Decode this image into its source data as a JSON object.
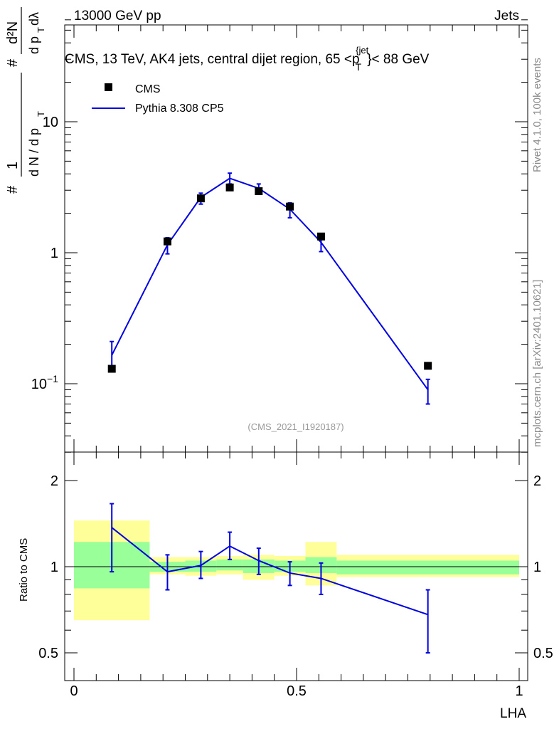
{
  "header": {
    "left": "13000 GeV pp",
    "right": "Jets"
  },
  "plot_title": "CMS, 13 TeV, AK4 jets, central dijet region, 65 <p",
  "plot_title_sup": "{jet",
  "plot_title_sub": "T",
  "plot_title_end": "}< 88 GeV",
  "side_labels": {
    "rivet": "Rivet 4.1.0,  100k events",
    "mcplots": "mcplots.cern.ch [arXiv:2401.10621]"
  },
  "analysis_ref": "(CMS_2021_I1920187)",
  "y_label_main": {
    "top_num": "d²N",
    "top_den": "d p",
    "top_den_sub": "T",
    "top_den_tail": " dλ",
    "bottom": "d N / d p",
    "bottom_sub": "T",
    "hash": "#",
    "one": "1"
  },
  "y_label_ratio": "Ratio to CMS",
  "x_label": "LHA",
  "legend": [
    {
      "name": "CMS",
      "marker": "square"
    },
    {
      "name": "Pythia 8.308 CP5",
      "marker": "line"
    }
  ],
  "colors": {
    "data": "#000000",
    "mc": "#0000e0",
    "band_outer": "#ffff99",
    "band_inner": "#99ff99"
  },
  "chart_data": [
    {
      "type": "scatter",
      "panel": "main",
      "title": "CMS, 13 TeV, AK4 jets, central dijet region, 65 < pT{jet} < 88 GeV",
      "xlabel": "LHA",
      "ylabel": "1/dN/dpT · d²N/dpT dλ",
      "yscale": "log",
      "xlim": [
        0,
        1
      ],
      "ylim": [
        0.03,
        60
      ],
      "y_ticks": [
        {
          "value": 0.1,
          "label": "10⁻¹"
        },
        {
          "value": 1,
          "label": "1"
        },
        {
          "value": 10,
          "label": "10"
        }
      ],
      "x_bins": [
        [
          0.0,
          0.17
        ],
        [
          0.17,
          0.25
        ],
        [
          0.25,
          0.32
        ],
        [
          0.32,
          0.38
        ],
        [
          0.38,
          0.45
        ],
        [
          0.45,
          0.52
        ],
        [
          0.52,
          0.59
        ],
        [
          0.59,
          1.0
        ]
      ],
      "series": [
        {
          "name": "CMS",
          "x": [
            0.085,
            0.21,
            0.285,
            0.35,
            0.415,
            0.485,
            0.555,
            0.795
          ],
          "values": [
            0.13,
            1.22,
            2.6,
            3.15,
            2.95,
            2.25,
            1.33,
            0.137
          ]
        },
        {
          "name": "Pythia 8.308 CP5",
          "x": [
            0.085,
            0.21,
            0.285,
            0.35,
            0.415,
            0.485,
            0.555,
            0.795
          ],
          "values": [
            0.165,
            1.15,
            2.65,
            3.7,
            3.1,
            2.15,
            1.2,
            0.09
          ],
          "err_low": [
            0.13,
            0.98,
            2.35,
            3.35,
            2.8,
            1.85,
            1.02,
            0.07
          ],
          "err_high": [
            0.21,
            1.3,
            2.85,
            4.05,
            3.35,
            2.4,
            1.35,
            0.108
          ]
        }
      ]
    },
    {
      "type": "line",
      "panel": "ratio",
      "xlabel": "LHA",
      "ylabel": "Ratio to CMS",
      "yscale": "log",
      "xlim": [
        0,
        1
      ],
      "ylim": [
        0.4,
        2.5
      ],
      "x_ticks": [
        {
          "value": 0,
          "label": "0"
        },
        {
          "value": 0.5,
          "label": "0.5"
        },
        {
          "value": 1,
          "label": "1"
        }
      ],
      "y_ticks": [
        {
          "value": 0.5,
          "label": "0.5"
        },
        {
          "value": 1,
          "label": "1"
        },
        {
          "value": 2,
          "label": "2"
        }
      ],
      "bands": {
        "bins": [
          [
            0.0,
            0.17
          ],
          [
            0.17,
            0.25
          ],
          [
            0.25,
            0.32
          ],
          [
            0.32,
            0.38
          ],
          [
            0.38,
            0.45
          ],
          [
            0.45,
            0.52
          ],
          [
            0.52,
            0.59
          ],
          [
            0.59,
            1.0
          ]
        ],
        "outer_low": [
          0.65,
          0.94,
          0.93,
          0.94,
          0.9,
          0.93,
          0.86,
          0.92
        ],
        "outer_high": [
          1.45,
          1.08,
          1.08,
          1.09,
          1.1,
          1.09,
          1.22,
          1.1
        ],
        "inner_low": [
          0.84,
          0.96,
          0.96,
          0.97,
          0.95,
          0.96,
          0.95,
          0.94
        ],
        "inner_high": [
          1.22,
          1.04,
          1.05,
          1.06,
          1.06,
          1.05,
          1.08,
          1.05
        ]
      },
      "series": [
        {
          "name": "Pythia 8.308 CP5 / CMS",
          "x": [
            0.085,
            0.21,
            0.285,
            0.35,
            0.415,
            0.485,
            0.555,
            0.795
          ],
          "values": [
            1.37,
            0.96,
            1.01,
            1.18,
            1.05,
            0.95,
            0.91,
            0.68
          ],
          "err_low": [
            0.96,
            0.83,
            0.91,
            1.06,
            0.94,
            0.86,
            0.8,
            0.5
          ],
          "err_high": [
            1.66,
            1.1,
            1.13,
            1.32,
            1.16,
            1.04,
            1.03,
            0.83
          ]
        }
      ]
    }
  ]
}
